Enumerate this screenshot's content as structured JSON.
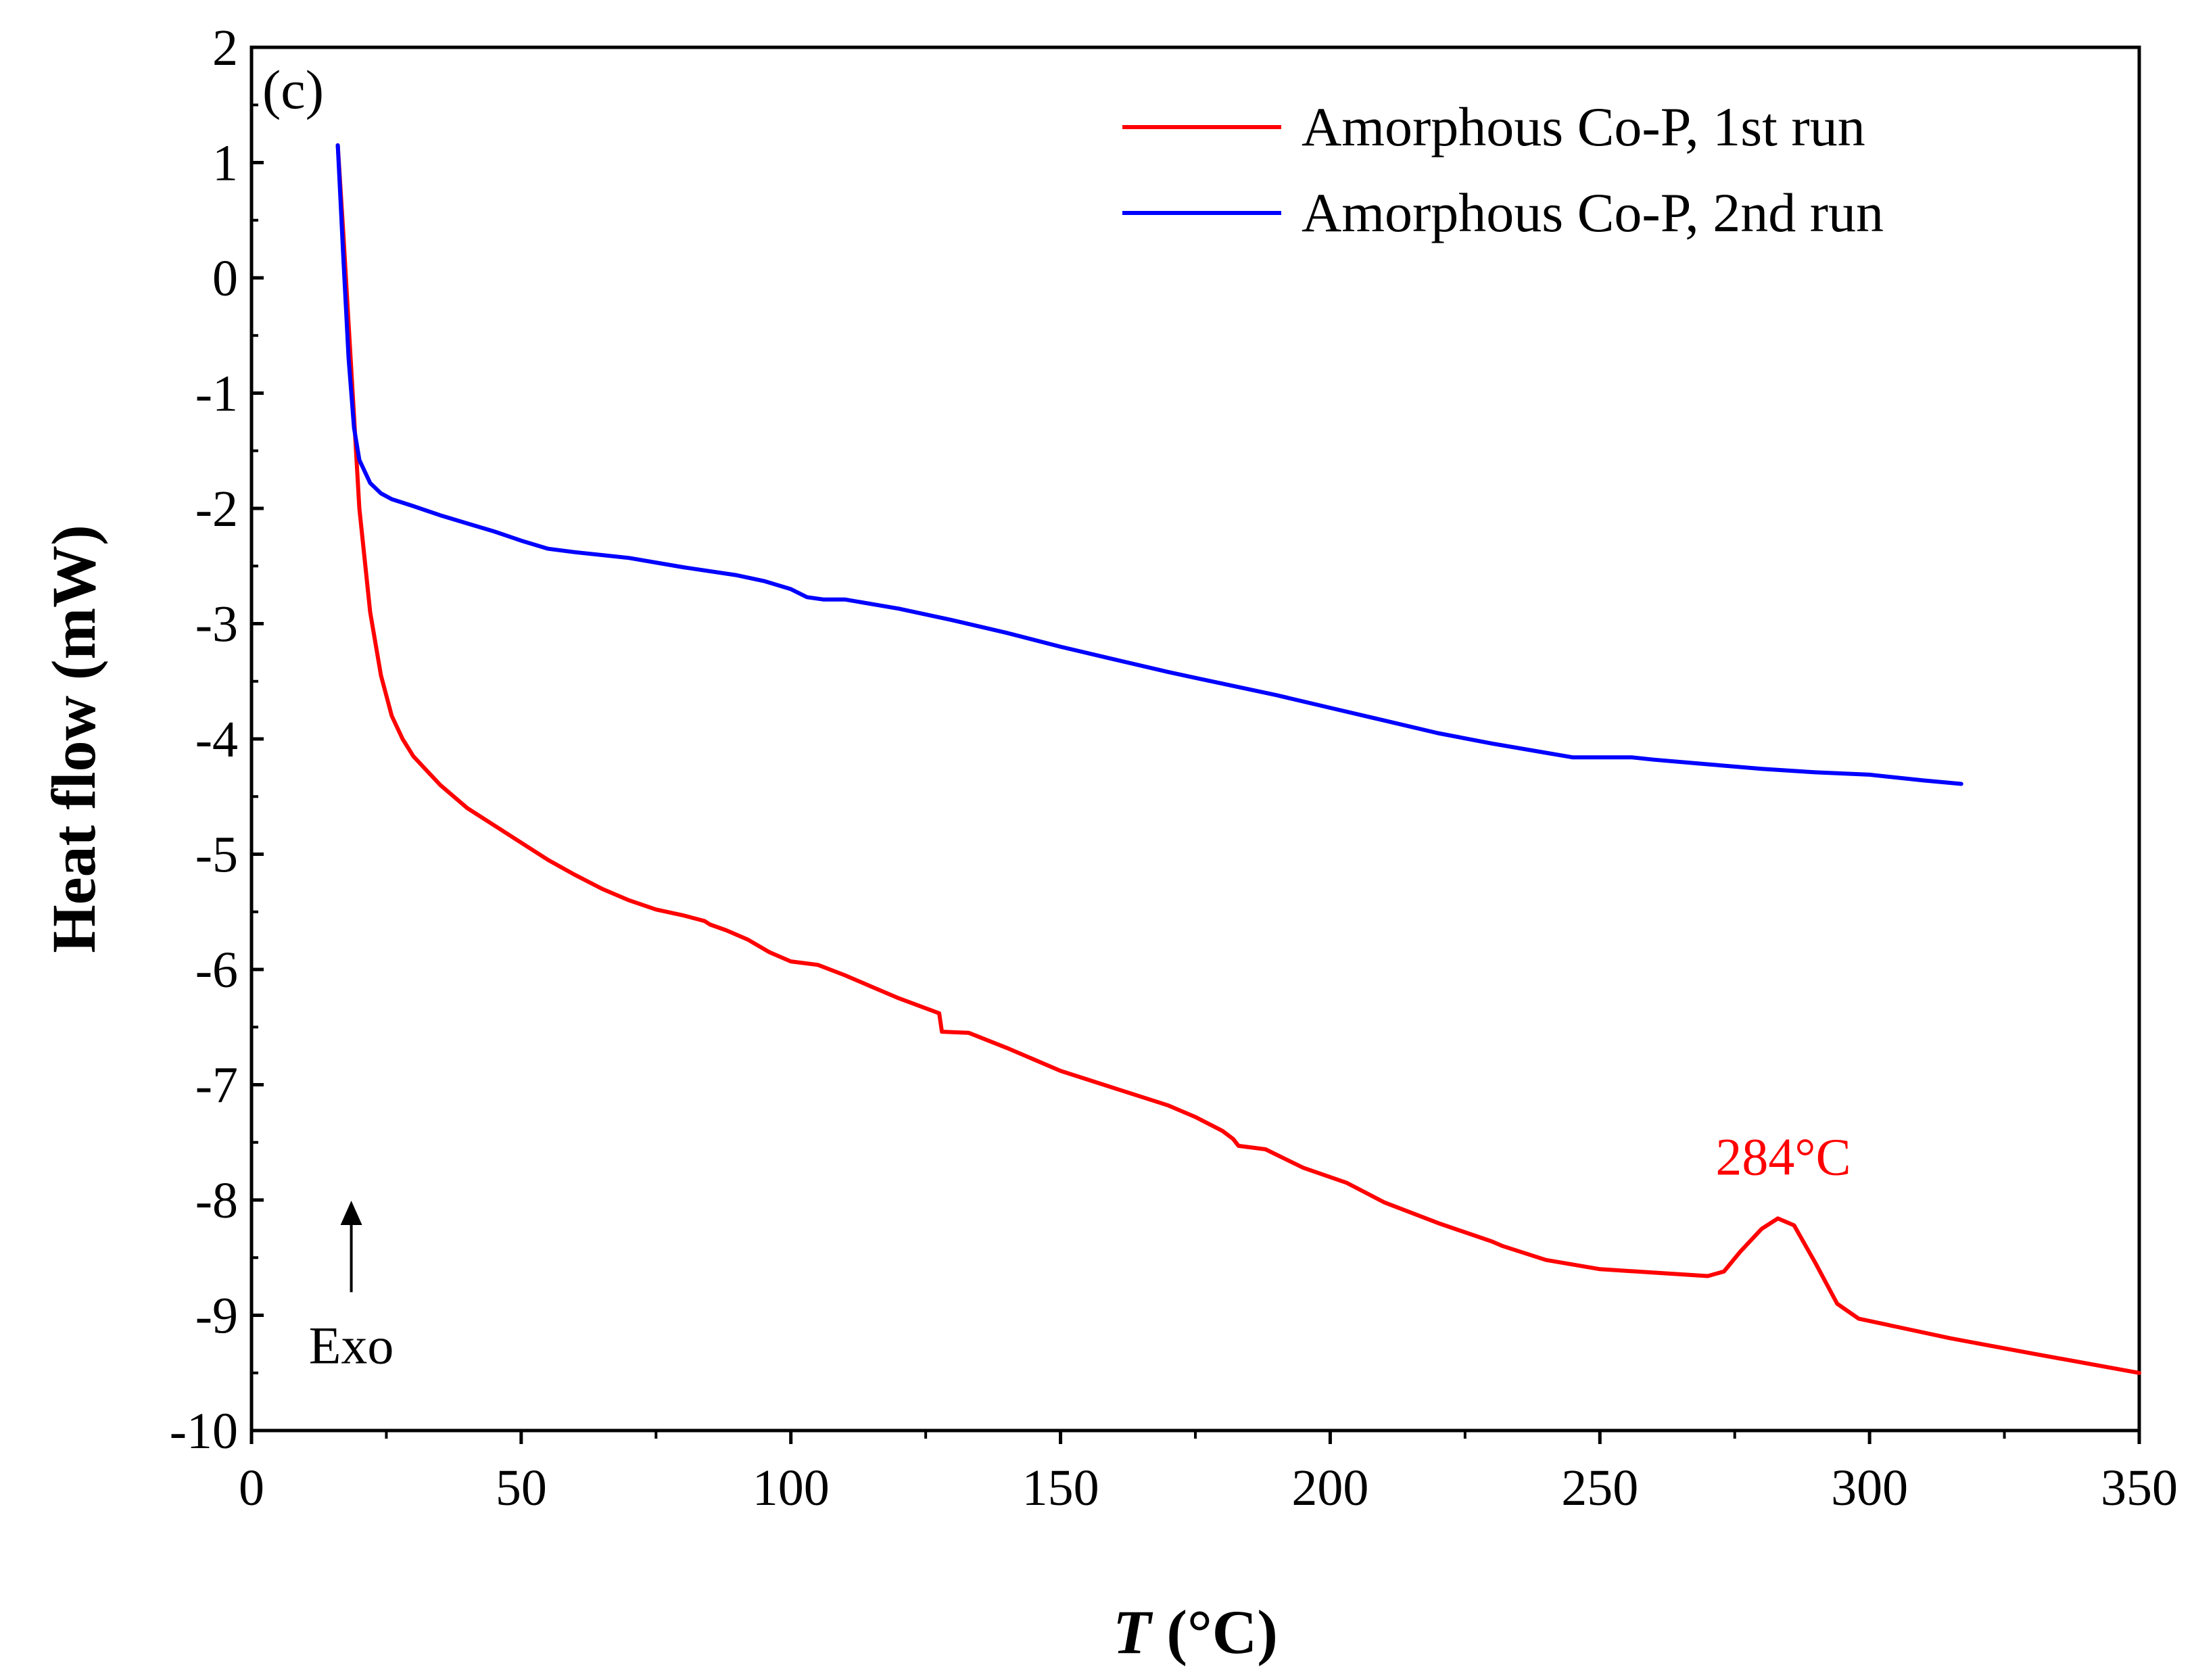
{
  "chart_data": {
    "type": "line",
    "panel_label": "(c)",
    "xlabel_symbol": "T",
    "xlabel_unit": " (°C)",
    "ylabel": "Heat flow (mW)",
    "xlim": [
      0,
      350
    ],
    "ylim": [
      -10,
      2
    ],
    "xticks": [
      0,
      50,
      100,
      150,
      200,
      250,
      300,
      350
    ],
    "yticks": [
      2,
      1,
      0,
      -1,
      -2,
      -3,
      -4,
      -5,
      -6,
      -7,
      -8,
      -9,
      -10
    ],
    "series": [
      {
        "name": "Amorphous Co-P, 1st run",
        "color": "#ff0000",
        "x": [
          16,
          17,
          18,
          19,
          20,
          22,
          24,
          26,
          28,
          30,
          35,
          40,
          45,
          50,
          55,
          60,
          65,
          70,
          75,
          80,
          84,
          85,
          88,
          92,
          96,
          100,
          105,
          110,
          115,
          120,
          127.5,
          128,
          133,
          140,
          150,
          160,
          170,
          175,
          180,
          182,
          183,
          188,
          195,
          203,
          210,
          220,
          230,
          232,
          240,
          250,
          260,
          270,
          273,
          276,
          280,
          283,
          286,
          290,
          294,
          298,
          305,
          315,
          330,
          350
        ],
        "y": [
          1.15,
          0.4,
          -0.4,
          -1.2,
          -2.0,
          -2.9,
          -3.45,
          -3.8,
          -4.0,
          -4.15,
          -4.4,
          -4.6,
          -4.75,
          -4.9,
          -5.05,
          -5.18,
          -5.3,
          -5.4,
          -5.48,
          -5.53,
          -5.58,
          -5.61,
          -5.66,
          -5.74,
          -5.85,
          -5.93,
          -5.96,
          -6.05,
          -6.15,
          -6.25,
          -6.38,
          -6.54,
          -6.55,
          -6.68,
          -6.88,
          -7.03,
          -7.18,
          -7.28,
          -7.4,
          -7.47,
          -7.53,
          -7.56,
          -7.72,
          -7.85,
          -8.02,
          -8.2,
          -8.36,
          -8.4,
          -8.52,
          -8.6,
          -8.63,
          -8.66,
          -8.62,
          -8.45,
          -8.25,
          -8.16,
          -8.22,
          -8.55,
          -8.9,
          -9.03,
          -9.1,
          -9.2,
          -9.33,
          -9.5
        ]
      },
      {
        "name": "Amorphous Co-P, 2nd run",
        "color": "#0000ff",
        "x": [
          16,
          17,
          18,
          19,
          20,
          22,
          24,
          26,
          28,
          30,
          35,
          40,
          45,
          50,
          55,
          60,
          70,
          80,
          90,
          95,
          100,
          103,
          106,
          110,
          120,
          130,
          140,
          150,
          160,
          170,
          180,
          190,
          200,
          210,
          220,
          230,
          240,
          245,
          250,
          256,
          260,
          270,
          280,
          290,
          300,
          310,
          317
        ],
        "y": [
          1.15,
          0.2,
          -0.7,
          -1.3,
          -1.58,
          -1.78,
          -1.87,
          -1.92,
          -1.95,
          -1.98,
          -2.06,
          -2.13,
          -2.2,
          -2.28,
          -2.35,
          -2.38,
          -2.43,
          -2.51,
          -2.58,
          -2.63,
          -2.7,
          -2.77,
          -2.79,
          -2.79,
          -2.87,
          -2.97,
          -3.08,
          -3.2,
          -3.31,
          -3.42,
          -3.52,
          -3.62,
          -3.73,
          -3.84,
          -3.95,
          -4.04,
          -4.12,
          -4.16,
          -4.16,
          -4.16,
          -4.18,
          -4.22,
          -4.26,
          -4.29,
          -4.31,
          -4.36,
          -4.39
        ]
      }
    ],
    "annotations": {
      "peak_label": "284°C",
      "peak_x": 284,
      "peak_y": -7.78,
      "exo_label": "Exo",
      "exo_x": 18.5,
      "exo_y_from": -8.8,
      "exo_y_to": -8.1
    },
    "legend_position": "top-right",
    "grid": false
  }
}
